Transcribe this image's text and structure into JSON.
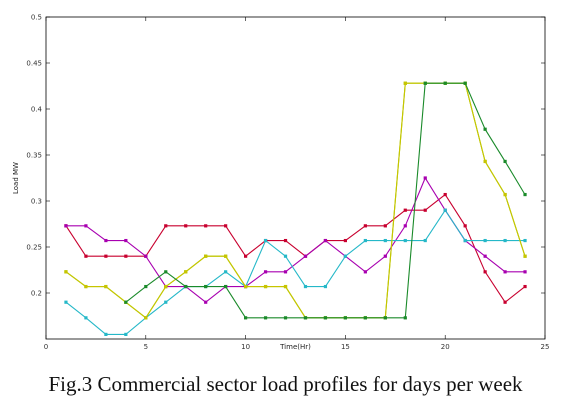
{
  "caption": "Fig.3 Commercial sector load profiles for days per week",
  "chart_data": {
    "type": "line",
    "xlabel": "Time(Hr)",
    "ylabel": "Load MW",
    "xlim": [
      0,
      25
    ],
    "ylim": [
      0.15,
      0.5
    ],
    "xticks": [
      0,
      5,
      10,
      15,
      20,
      25
    ],
    "yticks": [
      0.2,
      0.25,
      0.3,
      0.35,
      0.4,
      0.45,
      0.5
    ],
    "grid": false,
    "x": [
      1,
      2,
      3,
      4,
      5,
      6,
      7,
      8,
      9,
      10,
      11,
      12,
      13,
      14,
      15,
      16,
      17,
      18,
      19,
      20,
      21,
      22,
      23,
      24
    ],
    "series": [
      {
        "color": "#c8002f",
        "values": [
          0.273,
          0.24,
          0.24,
          0.24,
          0.24,
          0.273,
          0.273,
          0.273,
          0.273,
          0.24,
          0.257,
          0.257,
          0.24,
          0.257,
          0.257,
          0.273,
          0.273,
          0.29,
          0.29,
          0.307,
          0.273,
          0.223,
          0.19,
          0.207
        ]
      },
      {
        "color": "#a800b0",
        "values": [
          0.273,
          0.273,
          0.257,
          0.257,
          0.24,
          0.207,
          0.207,
          0.19,
          0.207,
          0.207,
          0.223,
          0.223,
          0.24,
          0.257,
          0.24,
          0.223,
          0.24,
          0.273,
          0.325,
          0.29,
          0.257,
          0.24,
          0.223,
          0.223
        ]
      },
      {
        "color": "#25b8c8",
        "values": [
          0.19,
          0.173,
          0.155,
          0.155,
          0.173,
          0.19,
          0.207,
          0.207,
          0.223,
          0.207,
          0.257,
          0.24,
          0.207,
          0.207,
          0.24,
          0.257,
          0.257,
          0.257,
          0.257,
          0.29,
          0.257,
          0.257,
          0.257,
          0.257
        ]
      },
      {
        "color": "#8fd400",
        "values": [
          0.223,
          0.207,
          0.207,
          0.19,
          0.173,
          0.207,
          0.223,
          0.24,
          0.24,
          0.207,
          0.207,
          0.207,
          0.173,
          0.173,
          0.173,
          0.173,
          0.173,
          0.428,
          0.428,
          0.428,
          0.428,
          0.343,
          0.307,
          0.24
        ]
      },
      {
        "color": "#c8c400",
        "values": [
          0.223,
          0.207,
          0.207,
          0.19,
          0.173,
          0.207,
          0.223,
          0.24,
          0.24,
          0.207,
          0.207,
          0.207,
          0.173,
          0.173,
          0.173,
          0.173,
          0.173,
          0.428,
          0.428,
          0.428,
          0.428,
          0.343,
          0.307,
          0.24
        ]
      },
      {
        "color": "#1a8a2a",
        "values": [
          null,
          null,
          null,
          0.19,
          0.207,
          0.223,
          0.207,
          0.207,
          0.207,
          0.173,
          0.173,
          0.173,
          0.173,
          0.173,
          0.173,
          0.173,
          0.173,
          0.173,
          0.428,
          0.428,
          0.428,
          0.378,
          0.343,
          0.307
        ]
      }
    ]
  }
}
